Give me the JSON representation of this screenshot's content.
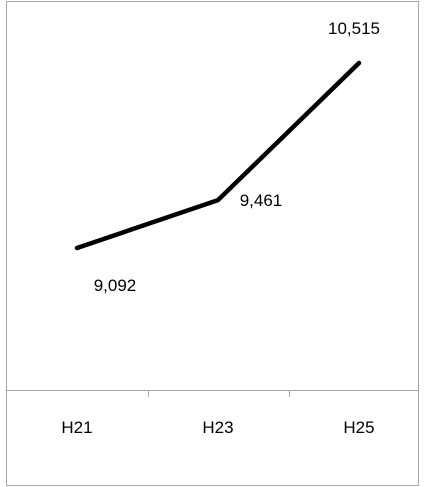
{
  "chart_data": {
    "type": "line",
    "categories": [
      "H21",
      "H23",
      "H25"
    ],
    "series": [
      {
        "values": [
          9092,
          9461,
          10515
        ],
        "labels": [
          "9,092",
          "9,461",
          "10,515"
        ],
        "color": "#000000"
      }
    ],
    "title": "",
    "xlabel": "",
    "ylabel": "",
    "ylim": [
      8000,
      11000
    ],
    "grid": false,
    "legend": "none"
  }
}
